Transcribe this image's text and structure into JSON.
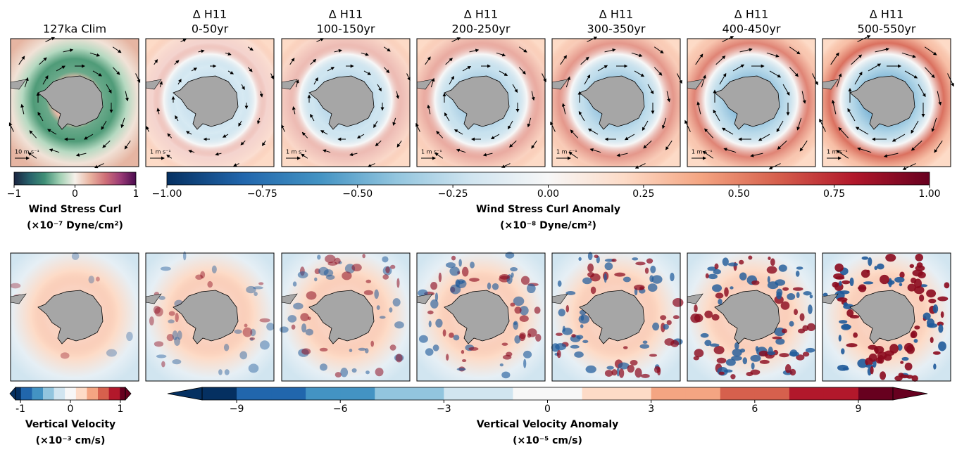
{
  "top_row": {
    "panels": [
      {
        "title": [
          "127ka Clim"
        ],
        "vector_key": "10 m s⁻¹"
      },
      {
        "title": [
          "Δ H11",
          "0-50yr"
        ],
        "vector_key": "1 m s⁻¹"
      },
      {
        "title": [
          "Δ H11",
          "100-150yr"
        ],
        "vector_key": "1 m s⁻¹"
      },
      {
        "title": [
          "Δ H11",
          "200-250yr"
        ],
        "vector_key": "1 m s⁻¹"
      },
      {
        "title": [
          "Δ H11",
          "300-350yr"
        ],
        "vector_key": "1 m s⁻¹"
      },
      {
        "title": [
          "Δ H11",
          "400-450yr"
        ],
        "vector_key": "1 m s⁻¹"
      },
      {
        "title": [
          "Δ H11",
          "500-550yr"
        ],
        "vector_key": "1 m s⁻¹"
      }
    ]
  },
  "chart_data": [
    {
      "type": "colorbar",
      "label": [
        "Wind Stress Curl",
        "(×10⁻⁷ Dyne/cm²)"
      ],
      "xlim": [
        -1,
        1
      ],
      "xticks": [
        {
          "value": -1,
          "label": "−1"
        },
        0,
        1
      ],
      "extend": false,
      "discrete": false,
      "colormap": [
        "#1a2440",
        "#27606a",
        "#3f8f76",
        "#9fcfb2",
        "#f6f1ea",
        "#e9b3a0",
        "#cf6f78",
        "#9a3a76",
        "#4a0a4e"
      ]
    },
    {
      "type": "colorbar",
      "label": [
        "Wind Stress Curl Anomaly",
        "(×10⁻⁸ Dyne/cm²)"
      ],
      "xlim": [
        -1,
        1
      ],
      "xticks": [
        {
          "value": -1,
          "label": "−1.00"
        },
        {
          "value": -0.75,
          "label": "−0.75"
        },
        {
          "value": -0.5,
          "label": "−0.50"
        },
        {
          "value": -0.25,
          "label": "−0.25"
        },
        {
          "value": 0,
          "label": "0.00"
        },
        {
          "value": 0.25,
          "label": "0.25"
        },
        {
          "value": 0.5,
          "label": "0.50"
        },
        {
          "value": 0.75,
          "label": "0.75"
        },
        {
          "value": 1,
          "label": "1.00"
        }
      ],
      "extend": false,
      "discrete": false,
      "colormap": [
        "#053061",
        "#2166ac",
        "#4393c3",
        "#92c5de",
        "#d1e5f0",
        "#f7f7f7",
        "#fddbc7",
        "#f4a582",
        "#d6604d",
        "#b2182b",
        "#67001f"
      ]
    },
    {
      "type": "colorbar",
      "label": [
        "Vertical Velocity",
        "(×10⁻³ cm/s)"
      ],
      "xlim": [
        -1.1,
        1.1
      ],
      "xticks": [
        -1,
        0,
        1
      ],
      "extend": true,
      "discrete": true,
      "colormap": [
        "#053061",
        "#2166ac",
        "#4393c3",
        "#92c5de",
        "#d1e5f0",
        "#f7f7f7",
        "#fddbc7",
        "#f4a582",
        "#d6604d",
        "#b2182b",
        "#67001f"
      ]
    },
    {
      "type": "colorbar",
      "label": [
        "Vertical Velocity Anomaly",
        "(×10⁻⁵ cm/s)"
      ],
      "xlim": [
        -10,
        10
      ],
      "xticks": [
        {
          "value": -9,
          "label": "−9"
        },
        {
          "value": -6,
          "label": "−6"
        },
        {
          "value": -3,
          "label": "−3"
        },
        0,
        3,
        6,
        9
      ],
      "extend": true,
      "discrete": true,
      "colormap": [
        "#053061",
        "#2166ac",
        "#4393c3",
        "#92c5de",
        "#d1e5f0",
        "#f7f7f7",
        "#fddbc7",
        "#f4a582",
        "#d6604d",
        "#b2182b",
        "#67001f"
      ]
    }
  ]
}
